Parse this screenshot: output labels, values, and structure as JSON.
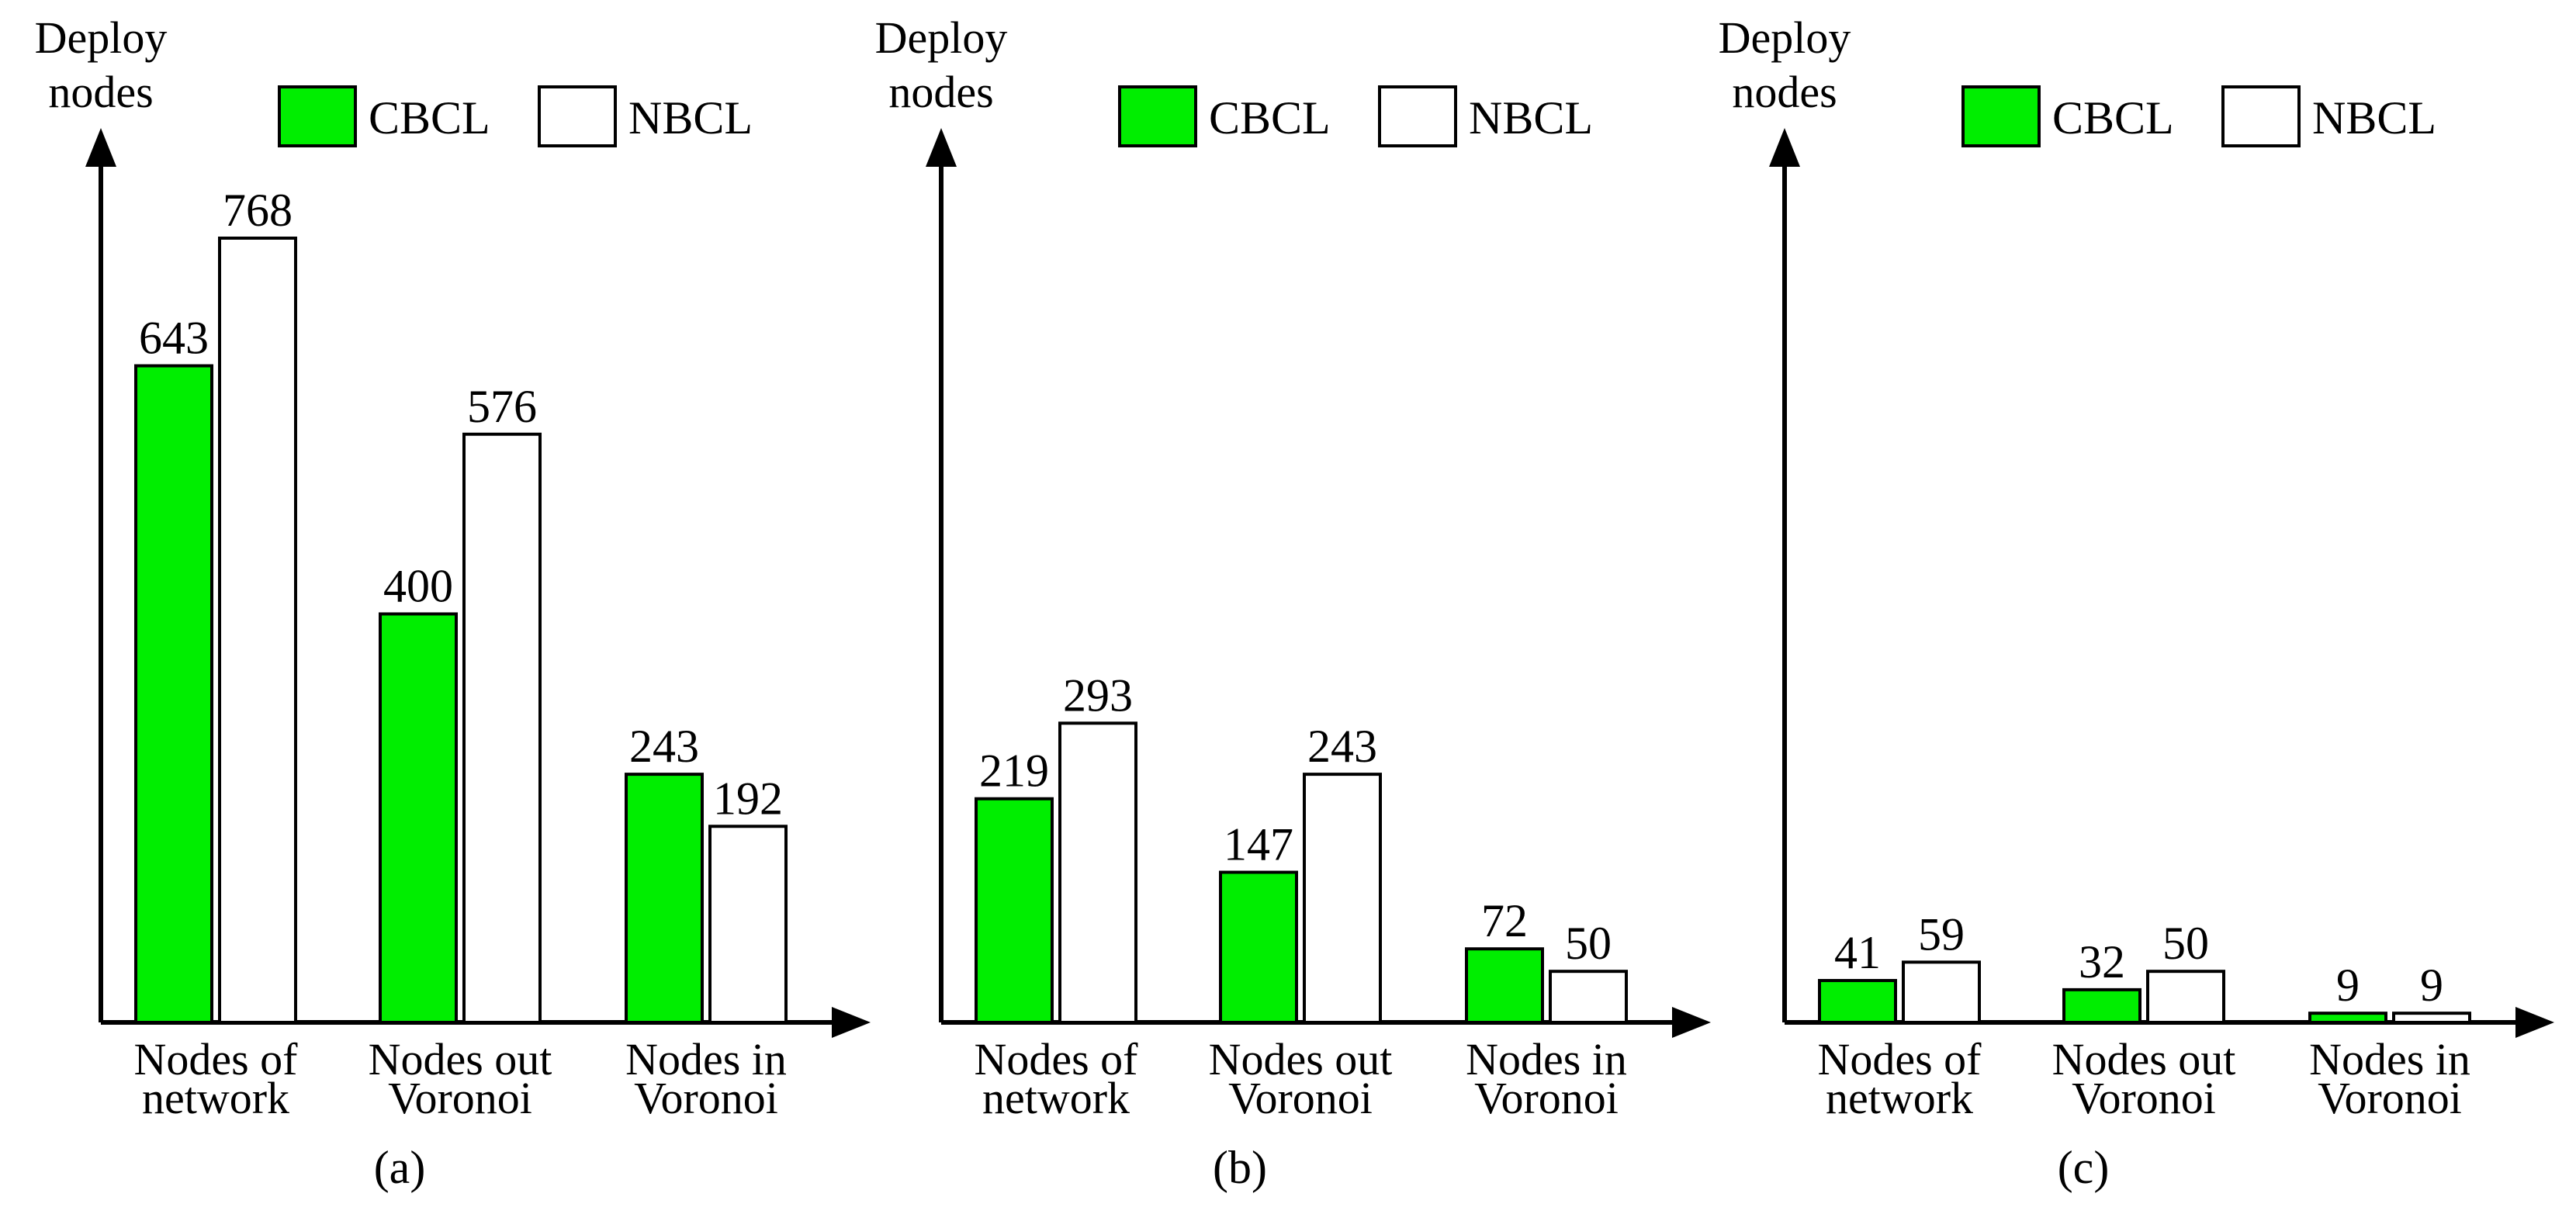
{
  "colors": {
    "cbcl_fill": "#00EE00",
    "nbcl_fill": "#FFFFFF",
    "stroke": "#000000"
  },
  "legend": {
    "cbcl": "CBCL",
    "nbcl": "NBCL"
  },
  "chart_data": [
    {
      "type": "bar",
      "caption": "(a)",
      "ylabel": [
        "Deploy",
        "nodes"
      ],
      "categories": [
        [
          "Nodes of",
          "network"
        ],
        [
          "Nodes out",
          "Voronoi"
        ],
        [
          "Nodes in",
          "Voronoi"
        ]
      ],
      "series": [
        {
          "name": "CBCL",
          "values": [
            643,
            400,
            243
          ]
        },
        {
          "name": "NBCL",
          "values": [
            768,
            576,
            192
          ]
        }
      ],
      "legend_position": "top-right",
      "grid": false
    },
    {
      "type": "bar",
      "caption": "(b)",
      "ylabel": [
        "Deploy",
        "nodes"
      ],
      "categories": [
        [
          "Nodes of",
          "network"
        ],
        [
          "Nodes out",
          "Voronoi"
        ],
        [
          "Nodes in",
          "Voronoi"
        ]
      ],
      "series": [
        {
          "name": "CBCL",
          "values": [
            219,
            147,
            72
          ]
        },
        {
          "name": "NBCL",
          "values": [
            293,
            243,
            50
          ]
        }
      ],
      "legend_position": "top-right",
      "grid": false
    },
    {
      "type": "bar",
      "caption": "(c)",
      "ylabel": [
        "Deploy",
        "nodes"
      ],
      "categories": [
        [
          "Nodes of",
          "network"
        ],
        [
          "Nodes out",
          "Voronoi"
        ],
        [
          "Nodes in",
          "Voronoi"
        ]
      ],
      "series": [
        {
          "name": "CBCL",
          "values": [
            41,
            32,
            9
          ]
        },
        {
          "name": "NBCL",
          "values": [
            59,
            50,
            9
          ]
        }
      ],
      "legend_position": "top-right",
      "grid": false
    }
  ]
}
